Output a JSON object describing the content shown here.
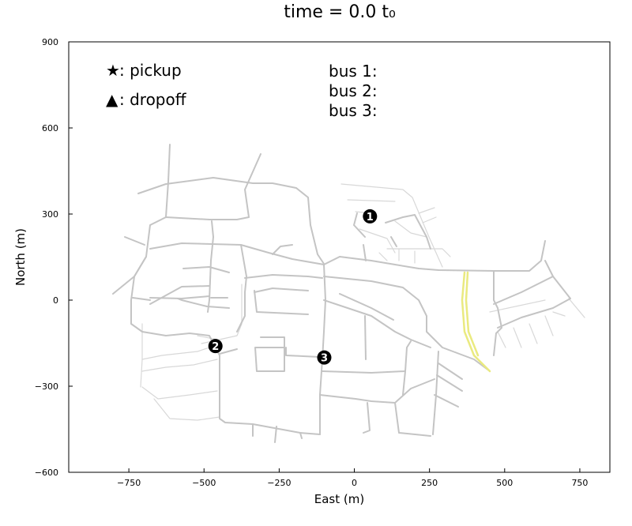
{
  "chart_data": {
    "type": "scatter",
    "title": "time = 0.0 t₀",
    "xlabel": "East (m)",
    "ylabel": "North (m)",
    "xlim": [
      -950,
      850
    ],
    "ylim": [
      -600,
      900
    ],
    "x_ticks": [
      -750,
      -500,
      -250,
      0,
      250,
      500,
      750
    ],
    "x_tick_labels": [
      "−750",
      "−500",
      "−250",
      "0",
      "250",
      "500",
      "750"
    ],
    "y_ticks": [
      -600,
      -300,
      0,
      300,
      600,
      900
    ],
    "y_tick_labels": [
      "−600",
      "−300",
      "0",
      "300",
      "600",
      "900"
    ],
    "legend_markers": [
      {
        "symbol": "★",
        "label": ": pickup"
      },
      {
        "symbol": "▲",
        "label": ": dropoff"
      }
    ],
    "bus_status": [
      {
        "label": "bus 1:"
      },
      {
        "label": "bus 2:"
      },
      {
        "label": "bus 3:"
      }
    ],
    "buses": [
      {
        "id": "1",
        "glyph": "1",
        "x": 52,
        "y": 292
      },
      {
        "id": "2",
        "glyph": "2",
        "x": -462,
        "y": -160
      },
      {
        "id": "3",
        "glyph": "3",
        "x": -100,
        "y": -200
      }
    ],
    "grid": false
  }
}
